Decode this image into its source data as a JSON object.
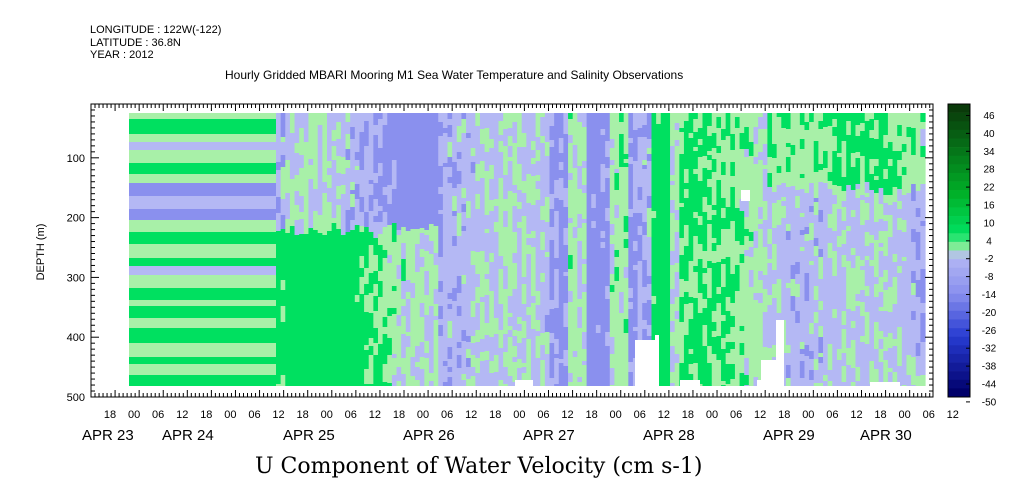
{
  "header": {
    "longitude": "LONGITUDE : 122W(-122)",
    "latitude": "LATITUDE : 36.8N",
    "year": "YEAR : 2012"
  },
  "chart_data": {
    "type": "heatmap",
    "title": "Hourly Gridded MBARI Mooring M1 Sea Water Temperature and Salinity Observations",
    "xlabel": "U Component of Water Velocity (cm s-1)",
    "ylabel": "DEPTH (m)",
    "y_ticks": [
      100,
      200,
      300,
      400,
      500
    ],
    "ylim": [
      500,
      10
    ],
    "hour_tick_labels": [
      "18",
      "00",
      "06",
      "12",
      "18",
      "00",
      "06",
      "12",
      "18",
      "00",
      "06",
      "12",
      "18",
      "00",
      "06",
      "12",
      "18",
      "00",
      "06",
      "12",
      "18",
      "00",
      "06",
      "12",
      "18",
      "00",
      "06",
      "12",
      "18",
      "00",
      "06",
      "12",
      "18",
      "00",
      "06",
      "12"
    ],
    "date_labels": [
      "APR 23",
      "APR 24",
      "APR 25",
      "APR 26",
      "APR 27",
      "APR 28",
      "APR 29",
      "APR 30"
    ],
    "colorbar": {
      "labels": [
        "46",
        "40",
        "34",
        "28",
        "22",
        "16",
        "10",
        "4",
        "-2",
        "-8",
        "-14",
        "-20",
        "-26",
        "-32",
        "-38",
        "-44",
        "-50"
      ],
      "min": -50,
      "max": 52,
      "step": 3
    },
    "colors": {
      "strong_positive": "#00e060",
      "weak_positive": "#a8f0a8",
      "weak_negative": "#b4b8f4",
      "strong_negative": "#8a90ee",
      "max": "#0a3a0a",
      "min": "#00006a"
    },
    "description_regions": [
      {
        "period": "APR 23 00 - APR 24 18",
        "pattern": "horizontal bands, mixed weak positive/negative"
      },
      {
        "period": "APR 25 - APR 26",
        "pattern": "negative upper layer, positive lower layer"
      },
      {
        "period": "APR 27 - APR 28",
        "pattern": "alternating vertical bands, strong positive near APR 28"
      },
      {
        "period": "APR 29 - APR 30",
        "pattern": "positive upper-right, negative mid-depth"
      }
    ]
  }
}
